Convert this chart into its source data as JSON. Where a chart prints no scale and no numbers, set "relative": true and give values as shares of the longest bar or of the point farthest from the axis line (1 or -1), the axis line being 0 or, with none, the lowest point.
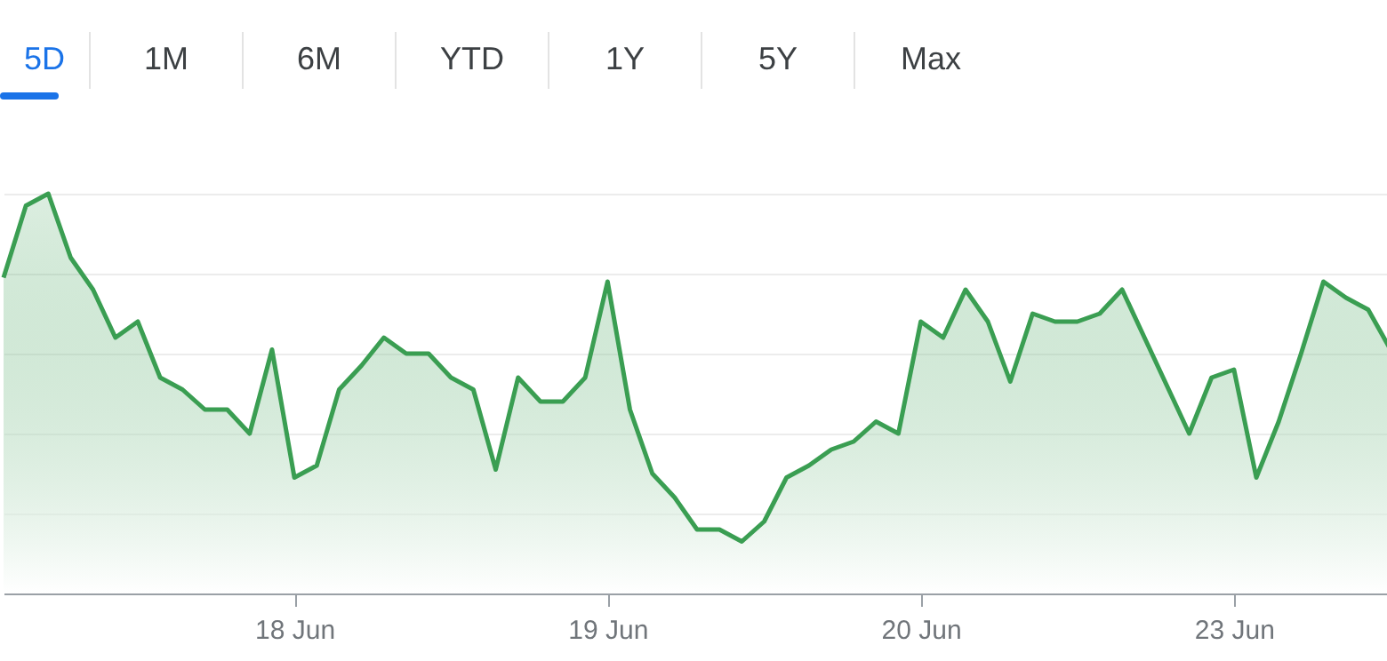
{
  "chart_data": {
    "type": "area",
    "relative": true,
    "color": "#3a9e52",
    "grid": "y",
    "tick_labels": "x",
    "annotations": [
      "5D",
      "1M",
      "6M",
      "YTD",
      "1Y",
      "5Y",
      "Max"
    ],
    "categories": [
      null,
      null,
      null,
      null,
      null,
      null,
      null,
      null,
      null,
      null,
      null,
      null,
      null,
      "18 Jun",
      null,
      null,
      null,
      null,
      null,
      null,
      null,
      null,
      null,
      null,
      null,
      null,
      null,
      "19 Jun",
      null,
      null,
      null,
      null,
      null,
      null,
      null,
      null,
      null,
      null,
      null,
      null,
      null,
      "20 Jun",
      null,
      null,
      null,
      null,
      null,
      null,
      null,
      null,
      null,
      null,
      null,
      null,
      null,
      "23 Jun",
      null,
      null,
      null,
      null,
      null,
      null,
      null
    ],
    "values": [
      0.79,
      0.97,
      1,
      0.84,
      0.76,
      0.64,
      0.68,
      0.54,
      0.51,
      0.46,
      0.46,
      0.4,
      0.61,
      0.29,
      0.32,
      0.51,
      0.57,
      0.64,
      0.6,
      0.6,
      0.54,
      0.51,
      0.31,
      0.54,
      0.48,
      0.48,
      0.54,
      0.78,
      0.46,
      0.3,
      0.24,
      0.16,
      0.16,
      0.13,
      0.18,
      0.29,
      0.32,
      0.36,
      0.38,
      0.43,
      0.4,
      0.68,
      0.64,
      0.76,
      0.68,
      0.53,
      0.7,
      0.68,
      0.68,
      0.7,
      0.76,
      0.64,
      0.52,
      0.4,
      0.54,
      0.56,
      0.29,
      0.43,
      0.6,
      0.78,
      0.74,
      0.71,
      0.61
    ]
  }
}
